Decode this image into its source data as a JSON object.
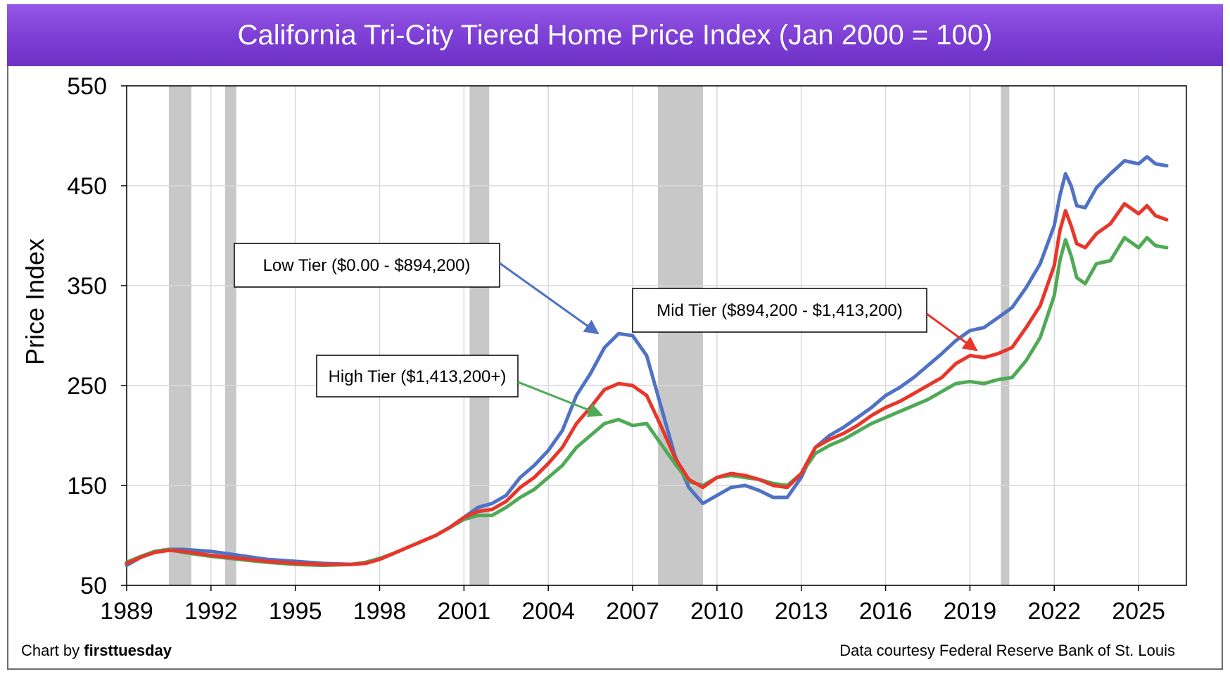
{
  "title": "California Tri-City Tiered Home Price Index (Jan 2000 = 100)",
  "footer": {
    "credit_prefix": "Chart by ",
    "credit_brand": "firsttuesday",
    "source": "Data courtesy Federal Reserve Bank of St. Louis"
  },
  "colors": {
    "low": "#4f72c4",
    "mid": "#e8362a",
    "high": "#4faa55",
    "recession": "#c8c8c8",
    "grid": "#d9d9d9"
  },
  "chart_data": {
    "type": "line",
    "title": "California Tri-City Tiered Home Price Index (Jan 2000 = 100)",
    "xlabel": "",
    "ylabel": "Price Index",
    "xlim": [
      1989,
      2026.7
    ],
    "ylim": [
      50,
      550
    ],
    "yticks": [
      50,
      150,
      250,
      350,
      450,
      550
    ],
    "xticks": [
      1989,
      1992,
      1995,
      1998,
      2001,
      2004,
      2007,
      2010,
      2013,
      2016,
      2019,
      2022,
      2025
    ],
    "grid": true,
    "recessions": [
      [
        1990.5,
        1991.3
      ],
      [
        1992.5,
        1992.9
      ],
      [
        2001.2,
        2001.9
      ],
      [
        2007.9,
        2009.5
      ],
      [
        2020.1,
        2020.4
      ]
    ],
    "series": [
      {
        "name": "Low Tier ($0.00 - $894,200)",
        "key": "low",
        "points": [
          [
            1989,
            70
          ],
          [
            1989.5,
            78
          ],
          [
            1990,
            84
          ],
          [
            1990.5,
            86
          ],
          [
            1991,
            86
          ],
          [
            1991.5,
            85
          ],
          [
            1992,
            84
          ],
          [
            1993,
            80
          ],
          [
            1994,
            76
          ],
          [
            1995,
            74
          ],
          [
            1996,
            72
          ],
          [
            1997,
            71
          ],
          [
            1997.5,
            73
          ],
          [
            1998,
            76
          ],
          [
            1998.5,
            82
          ],
          [
            1999,
            88
          ],
          [
            1999.5,
            94
          ],
          [
            2000,
            100
          ],
          [
            2000.5,
            108
          ],
          [
            2001,
            118
          ],
          [
            2001.5,
            128
          ],
          [
            2002,
            132
          ],
          [
            2002.5,
            140
          ],
          [
            2003,
            158
          ],
          [
            2003.5,
            170
          ],
          [
            2004,
            185
          ],
          [
            2004.5,
            205
          ],
          [
            2005,
            240
          ],
          [
            2005.5,
            262
          ],
          [
            2006,
            288
          ],
          [
            2006.5,
            302
          ],
          [
            2007,
            300
          ],
          [
            2007.5,
            280
          ],
          [
            2008,
            230
          ],
          [
            2008.5,
            180
          ],
          [
            2009,
            148
          ],
          [
            2009.5,
            132
          ],
          [
            2010,
            140
          ],
          [
            2010.5,
            148
          ],
          [
            2011,
            150
          ],
          [
            2011.5,
            145
          ],
          [
            2012,
            138
          ],
          [
            2012.5,
            138
          ],
          [
            2013,
            158
          ],
          [
            2013.5,
            188
          ],
          [
            2014,
            200
          ],
          [
            2014.5,
            208
          ],
          [
            2015,
            218
          ],
          [
            2015.5,
            228
          ],
          [
            2016,
            240
          ],
          [
            2016.5,
            248
          ],
          [
            2017,
            258
          ],
          [
            2017.5,
            270
          ],
          [
            2018,
            282
          ],
          [
            2018.5,
            295
          ],
          [
            2019,
            305
          ],
          [
            2019.5,
            308
          ],
          [
            2020,
            318
          ],
          [
            2020.5,
            328
          ],
          [
            2021,
            348
          ],
          [
            2021.5,
            372
          ],
          [
            2022,
            410
          ],
          [
            2022.2,
            440
          ],
          [
            2022.4,
            462
          ],
          [
            2022.6,
            450
          ],
          [
            2022.8,
            430
          ],
          [
            2023.1,
            428
          ],
          [
            2023.5,
            448
          ],
          [
            2024,
            462
          ],
          [
            2024.5,
            475
          ],
          [
            2025,
            472
          ],
          [
            2025.3,
            479
          ],
          [
            2025.6,
            472
          ],
          [
            2026,
            470
          ]
        ]
      },
      {
        "name": "Mid Tier ($894,200 - $1,413,200)",
        "key": "mid",
        "points": [
          [
            1989,
            72
          ],
          [
            1989.5,
            78
          ],
          [
            1990,
            83
          ],
          [
            1990.5,
            85
          ],
          [
            1991,
            84
          ],
          [
            1991.5,
            82
          ],
          [
            1992,
            80
          ],
          [
            1993,
            77
          ],
          [
            1994,
            74
          ],
          [
            1995,
            72
          ],
          [
            1996,
            71
          ],
          [
            1997,
            71
          ],
          [
            1997.5,
            72
          ],
          [
            1998,
            76
          ],
          [
            1998.5,
            82
          ],
          [
            1999,
            88
          ],
          [
            1999.5,
            94
          ],
          [
            2000,
            100
          ],
          [
            2000.5,
            108
          ],
          [
            2001,
            118
          ],
          [
            2001.5,
            124
          ],
          [
            2002,
            126
          ],
          [
            2002.5,
            134
          ],
          [
            2003,
            148
          ],
          [
            2003.5,
            158
          ],
          [
            2004,
            172
          ],
          [
            2004.5,
            188
          ],
          [
            2005,
            212
          ],
          [
            2005.5,
            228
          ],
          [
            2006,
            246
          ],
          [
            2006.5,
            252
          ],
          [
            2007,
            250
          ],
          [
            2007.5,
            240
          ],
          [
            2008,
            210
          ],
          [
            2008.5,
            178
          ],
          [
            2009,
            156
          ],
          [
            2009.5,
            148
          ],
          [
            2010,
            158
          ],
          [
            2010.5,
            162
          ],
          [
            2011,
            160
          ],
          [
            2011.5,
            156
          ],
          [
            2012,
            150
          ],
          [
            2012.5,
            148
          ],
          [
            2013,
            162
          ],
          [
            2013.5,
            188
          ],
          [
            2014,
            196
          ],
          [
            2014.5,
            202
          ],
          [
            2015,
            210
          ],
          [
            2015.5,
            220
          ],
          [
            2016,
            228
          ],
          [
            2016.5,
            234
          ],
          [
            2017,
            242
          ],
          [
            2017.5,
            250
          ],
          [
            2018,
            258
          ],
          [
            2018.5,
            272
          ],
          [
            2019,
            280
          ],
          [
            2019.5,
            278
          ],
          [
            2020,
            282
          ],
          [
            2020.5,
            288
          ],
          [
            2021,
            308
          ],
          [
            2021.5,
            330
          ],
          [
            2022,
            370
          ],
          [
            2022.2,
            405
          ],
          [
            2022.4,
            425
          ],
          [
            2022.6,
            410
          ],
          [
            2022.8,
            392
          ],
          [
            2023.1,
            388
          ],
          [
            2023.5,
            402
          ],
          [
            2024,
            412
          ],
          [
            2024.5,
            432
          ],
          [
            2025,
            422
          ],
          [
            2025.3,
            430
          ],
          [
            2025.6,
            420
          ],
          [
            2026,
            416
          ]
        ]
      },
      {
        "name": "High Tier ($1,413,200+)",
        "key": "high",
        "points": [
          [
            1989,
            73
          ],
          [
            1989.5,
            79
          ],
          [
            1990,
            84
          ],
          [
            1990.5,
            86
          ],
          [
            1991,
            83
          ],
          [
            1991.5,
            81
          ],
          [
            1992,
            79
          ],
          [
            1993,
            76
          ],
          [
            1994,
            73
          ],
          [
            1995,
            71
          ],
          [
            1996,
            70
          ],
          [
            1997,
            71
          ],
          [
            1997.5,
            73
          ],
          [
            1998,
            77
          ],
          [
            1998.5,
            82
          ],
          [
            1999,
            88
          ],
          [
            1999.5,
            94
          ],
          [
            2000,
            100
          ],
          [
            2000.5,
            108
          ],
          [
            2001,
            116
          ],
          [
            2001.5,
            120
          ],
          [
            2002,
            120
          ],
          [
            2002.5,
            128
          ],
          [
            2003,
            138
          ],
          [
            2003.5,
            146
          ],
          [
            2004,
            158
          ],
          [
            2004.5,
            170
          ],
          [
            2005,
            188
          ],
          [
            2005.5,
            200
          ],
          [
            2006,
            212
          ],
          [
            2006.5,
            216
          ],
          [
            2007,
            210
          ],
          [
            2007.5,
            212
          ],
          [
            2008,
            192
          ],
          [
            2008.5,
            172
          ],
          [
            2009,
            154
          ],
          [
            2009.5,
            150
          ],
          [
            2010,
            158
          ],
          [
            2010.5,
            160
          ],
          [
            2011,
            158
          ],
          [
            2011.5,
            156
          ],
          [
            2012,
            152
          ],
          [
            2012.5,
            150
          ],
          [
            2013,
            162
          ],
          [
            2013.5,
            182
          ],
          [
            2014,
            190
          ],
          [
            2014.5,
            196
          ],
          [
            2015,
            204
          ],
          [
            2015.5,
            212
          ],
          [
            2016,
            218
          ],
          [
            2016.5,
            224
          ],
          [
            2017,
            230
          ],
          [
            2017.5,
            236
          ],
          [
            2018,
            244
          ],
          [
            2018.5,
            252
          ],
          [
            2019,
            254
          ],
          [
            2019.5,
            252
          ],
          [
            2020,
            256
          ],
          [
            2020.5,
            258
          ],
          [
            2021,
            275
          ],
          [
            2021.5,
            298
          ],
          [
            2022,
            340
          ],
          [
            2022.2,
            375
          ],
          [
            2022.4,
            396
          ],
          [
            2022.6,
            380
          ],
          [
            2022.8,
            358
          ],
          [
            2023.1,
            352
          ],
          [
            2023.5,
            372
          ],
          [
            2024,
            375
          ],
          [
            2024.5,
            398
          ],
          [
            2025,
            388
          ],
          [
            2025.3,
            398
          ],
          [
            2025.6,
            390
          ],
          [
            2026,
            388
          ]
        ]
      }
    ],
    "annotations": [
      {
        "text": "Low Tier ($0.00 - $894,200)",
        "series": "low"
      },
      {
        "text": "Mid Tier ($894,200 - $1,413,200)",
        "series": "mid"
      },
      {
        "text": "High Tier ($1,413,200+)",
        "series": "high"
      }
    ]
  }
}
